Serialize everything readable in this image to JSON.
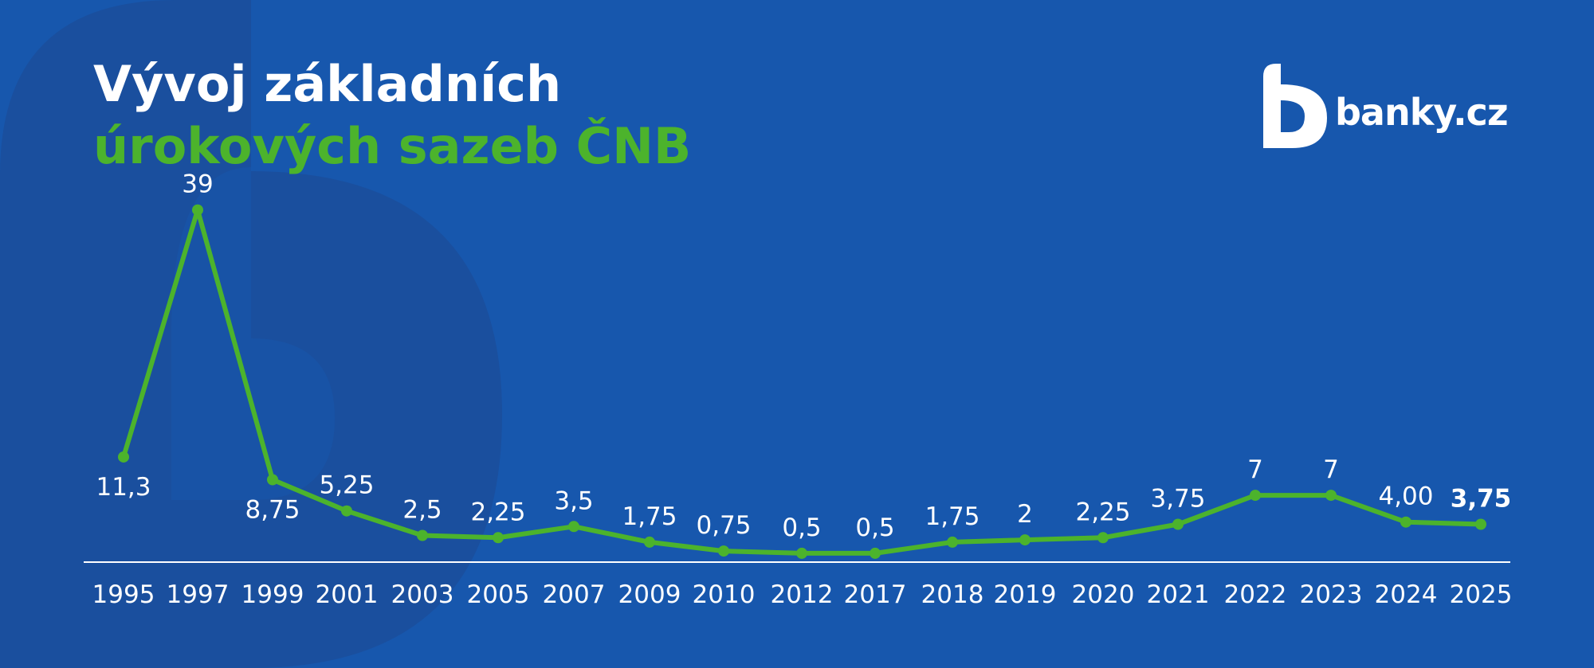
{
  "title": {
    "line1": "Vývoj základních",
    "line2": "úrokových sazeb ČNB"
  },
  "logo": {
    "text": "banky.cz",
    "icon": "banky-b-logo-icon"
  },
  "colors": {
    "background": "#1757ad",
    "watermark": "#1a4f9e",
    "line": "#4cb32c",
    "title_accent": "#4cb32c",
    "text": "#ffffff"
  },
  "chart_data": {
    "type": "line",
    "title": "Vývoj základních úrokových sazeb ČNB",
    "xlabel": "",
    "ylabel": "",
    "grid": false,
    "legend": false,
    "categories": [
      "1995",
      "1997",
      "1999",
      "2001",
      "2003",
      "2005",
      "2007",
      "2009",
      "2010",
      "2012",
      "2017",
      "2018",
      "2019",
      "2020",
      "2021",
      "2022",
      "2023",
      "2024",
      "2025"
    ],
    "values": [
      11.3,
      39,
      8.75,
      5.25,
      2.5,
      2.25,
      3.5,
      1.75,
      0.75,
      0.5,
      0.5,
      1.75,
      2,
      2.25,
      3.75,
      7,
      7,
      4,
      3.75
    ],
    "labels": [
      "11,3",
      "39",
      "8,75",
      "5,25",
      "2,5",
      "2,25",
      "3,5",
      "1,75",
      "0,75",
      "0,5",
      "0,5",
      "1,75",
      "2",
      "2,25",
      "3,75",
      "7",
      "7",
      "4,00",
      "3,75"
    ],
    "highlight_last": true
  }
}
